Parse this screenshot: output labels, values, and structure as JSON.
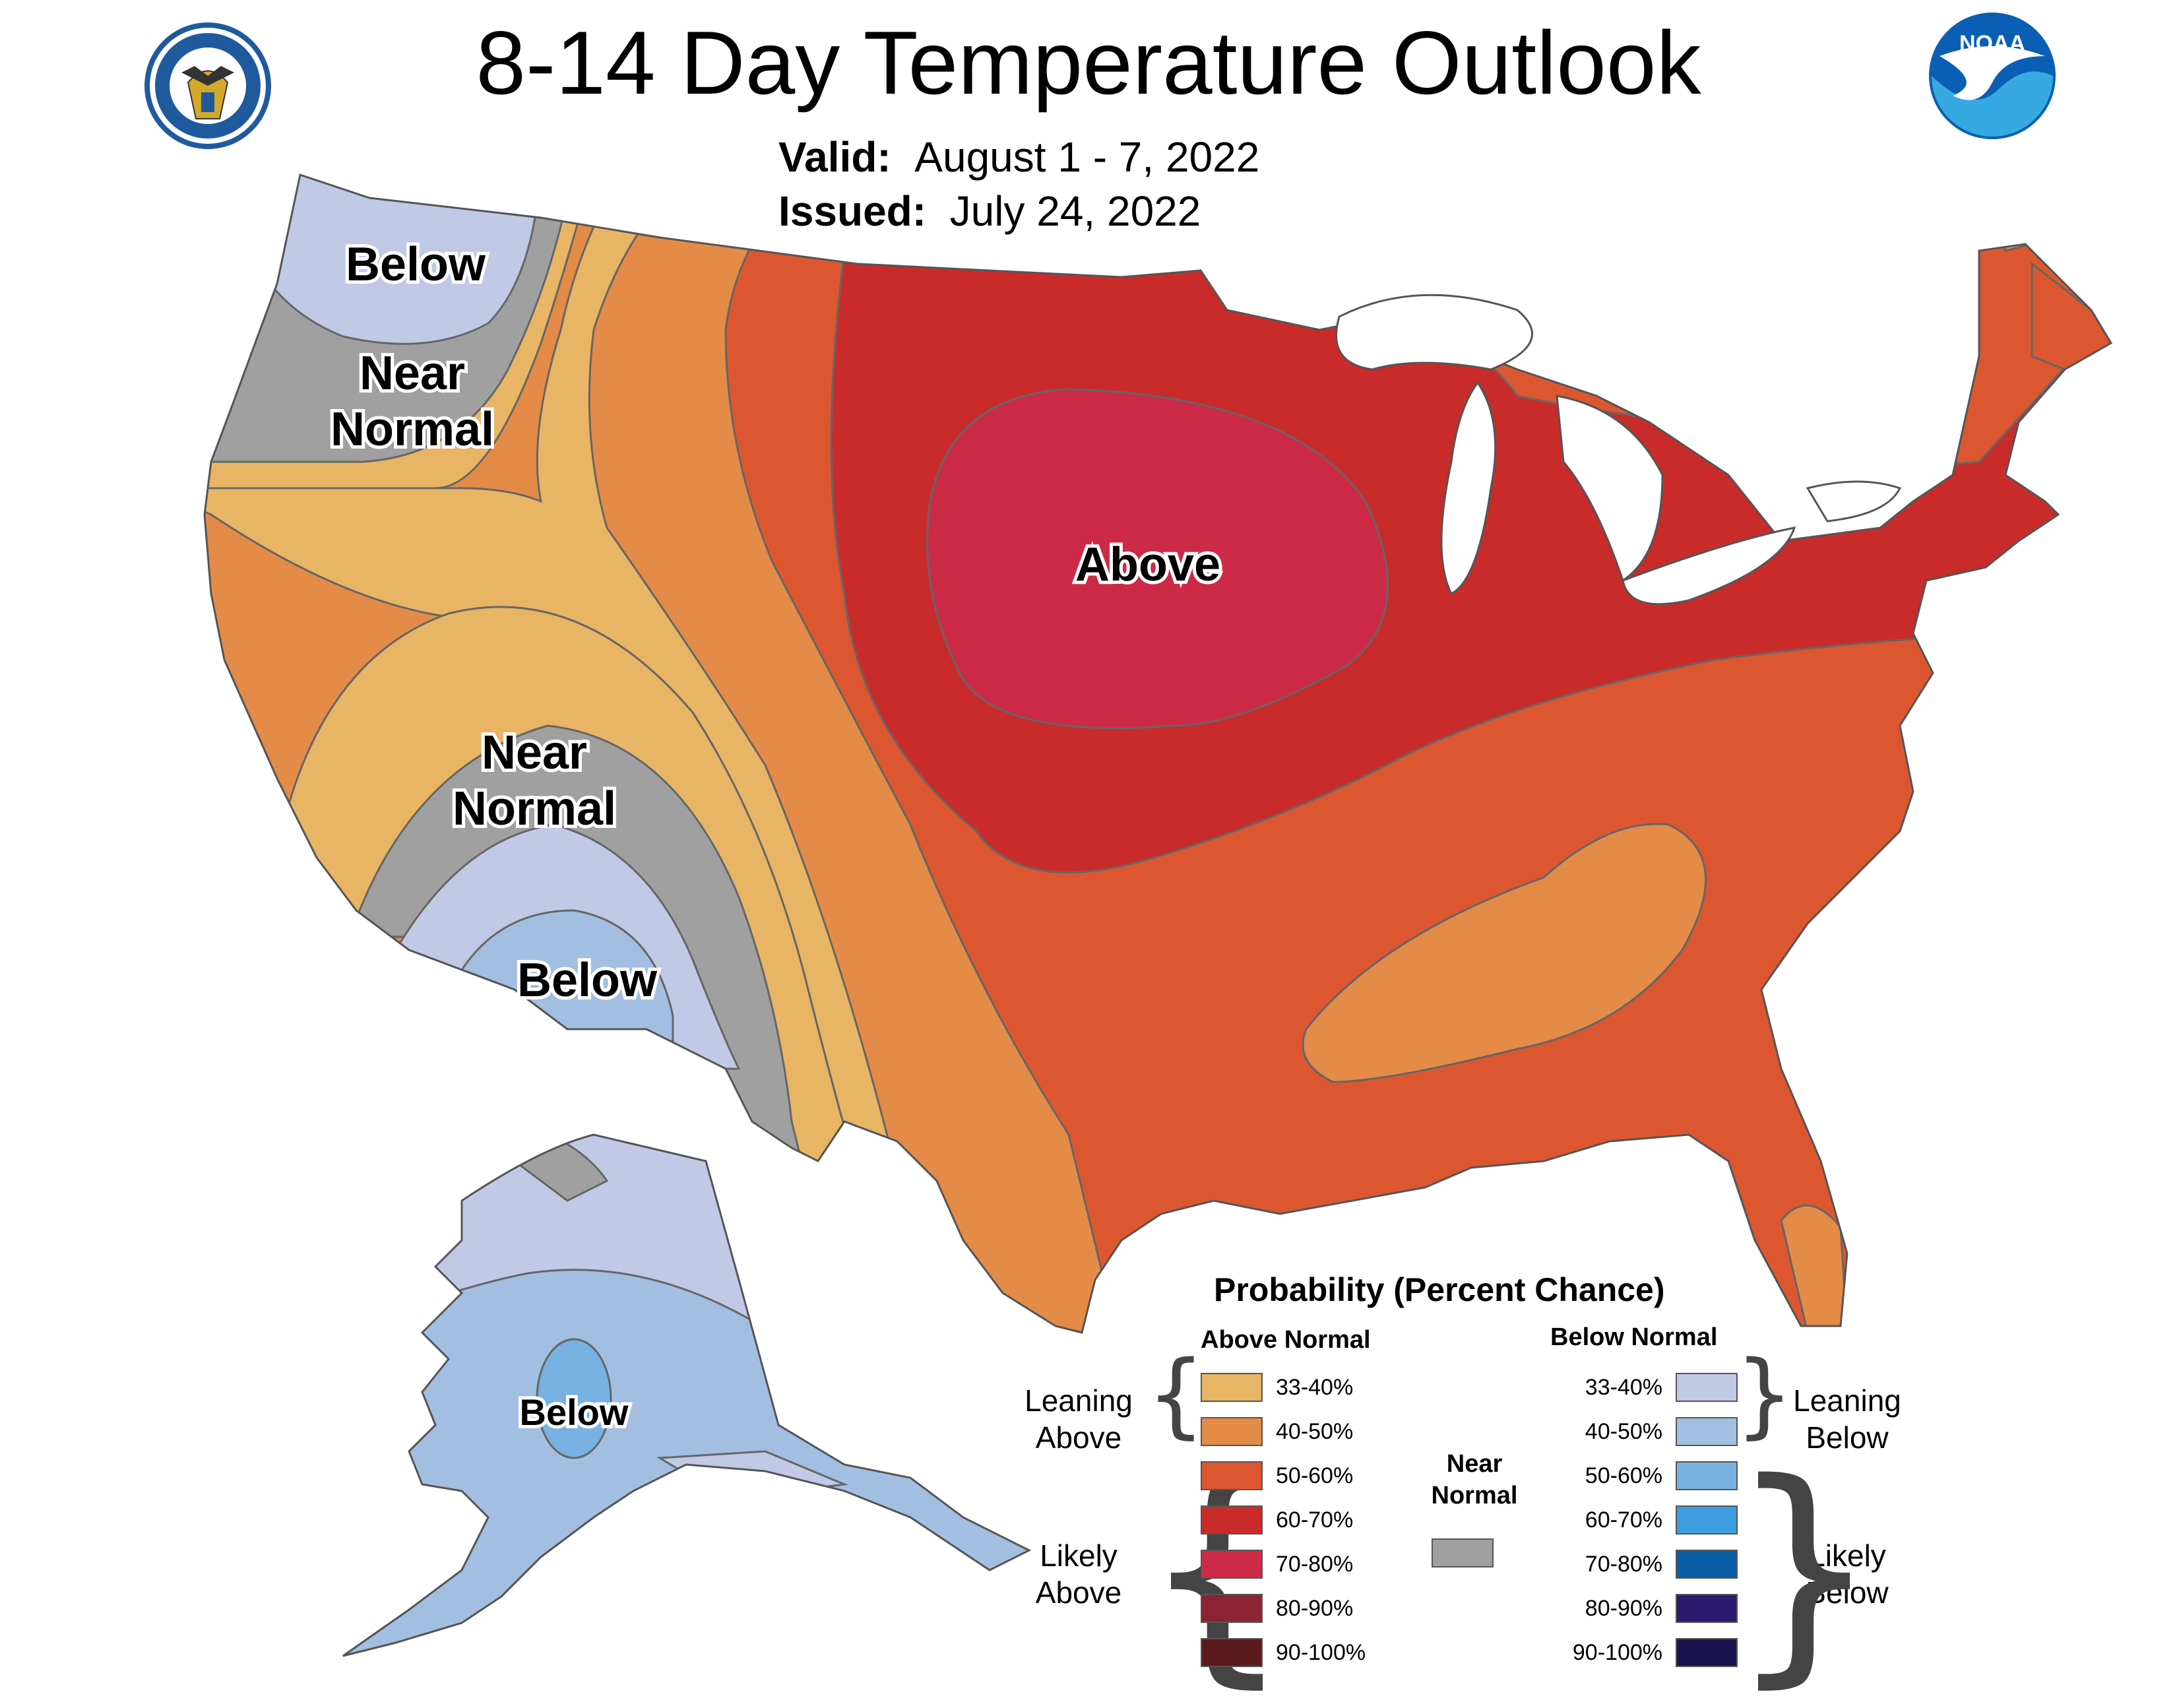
{
  "title": "8-14 Day Temperature Outlook",
  "valid_label": "Valid:",
  "valid_value": "August 1 - 7, 2022",
  "issued_label": "Issued:",
  "issued_value": "July 24, 2022",
  "logos": {
    "noaa_text": "NOAA",
    "doc_seal_text": "DEPARTMENT OF COMMERCE • UNITED STATES OF AMERICA"
  },
  "regions": {
    "nw_below": "Below",
    "nw_near_1": "Near",
    "nw_near_2": "Normal",
    "sw_near_1": "Near",
    "sw_near_2": "Normal",
    "sw_below": "Below",
    "central_above": "Above",
    "alaska_below": "Below"
  },
  "colors": {
    "above_33_40": "#e8b565",
    "above_40_50": "#e48b48",
    "above_50_60": "#dc5730",
    "above_60_70": "#c92b2a",
    "above_70_80": "#cd2a47",
    "above_80_90": "#8b2332",
    "above_90_100": "#5a1a1c",
    "near_normal": "#a0a0a0",
    "below_33_40": "#c0cae6",
    "below_40_50": "#a2bfe1",
    "below_50_60": "#78b2e2",
    "below_60_70": "#3d9fe0",
    "below_70_80": "#0b5fa6",
    "below_80_90": "#2b1a70",
    "below_90_100": "#1a1550"
  },
  "legend": {
    "title": "Probability (Percent Chance)",
    "above_header": "Above Normal",
    "below_header": "Below Normal",
    "near_label_1": "Near",
    "near_label_2": "Normal",
    "leaning_above_1": "Leaning",
    "leaning_above_2": "Above",
    "likely_above_1": "Likely",
    "likely_above_2": "Above",
    "leaning_below_1": "Leaning",
    "leaning_below_2": "Below",
    "likely_below_1": "Likely",
    "likely_below_2": "Below",
    "above": [
      {
        "label": "33-40%"
      },
      {
        "label": "40-50%"
      },
      {
        "label": "50-60%"
      },
      {
        "label": "60-70%"
      },
      {
        "label": "70-80%"
      },
      {
        "label": "80-90%"
      },
      {
        "label": "90-100%"
      }
    ],
    "below": [
      {
        "label": "33-40%"
      },
      {
        "label": "40-50%"
      },
      {
        "label": "50-60%"
      },
      {
        "label": "60-70%"
      },
      {
        "label": "70-80%"
      },
      {
        "label": "80-90%"
      },
      {
        "label": "90-100%"
      }
    ]
  }
}
